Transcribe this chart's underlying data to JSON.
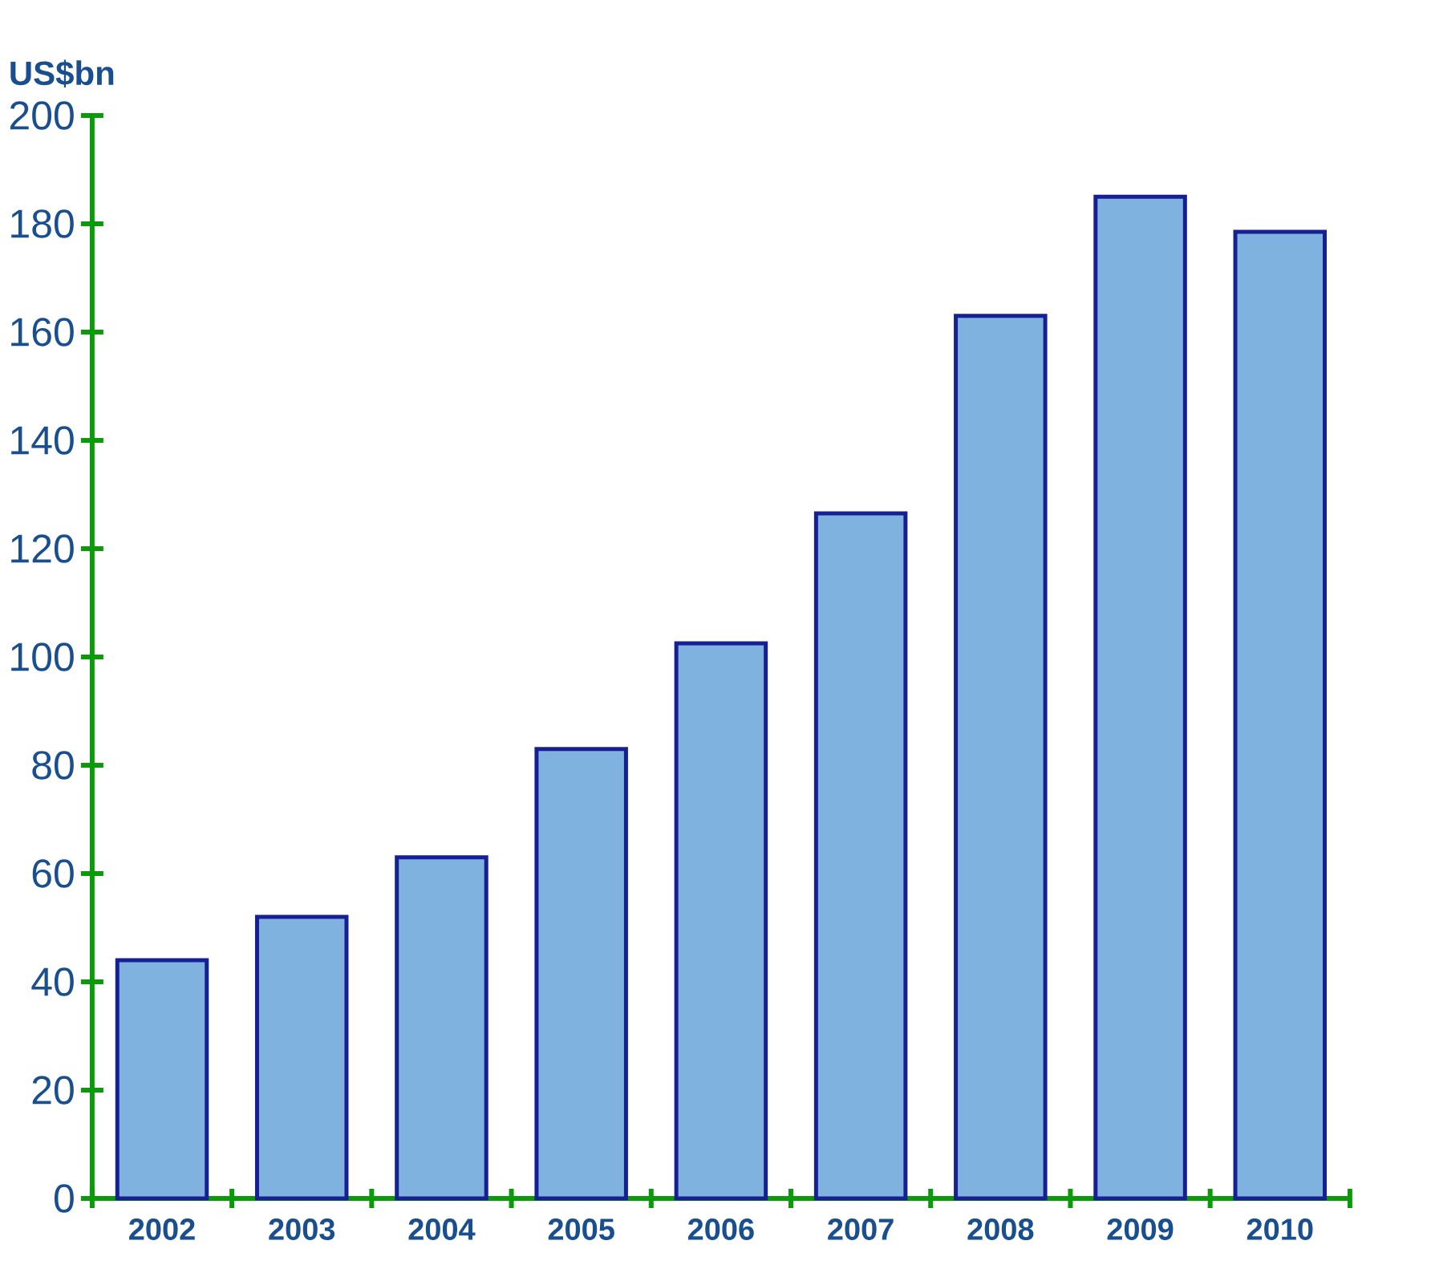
{
  "chart_data": {
    "type": "bar",
    "ylabel": "US$bn",
    "categories": [
      "2002",
      "2003",
      "2004",
      "2005",
      "2006",
      "2007",
      "2008",
      "2009",
      "2010"
    ],
    "values": [
      44,
      52,
      63,
      83,
      102.5,
      126.5,
      163,
      185,
      178.5
    ],
    "color": "#7fb2de",
    "ylim": [
      0,
      200
    ],
    "yticks": [
      0,
      20,
      40,
      60,
      80,
      100,
      120,
      140,
      160,
      180,
      200
    ]
  }
}
